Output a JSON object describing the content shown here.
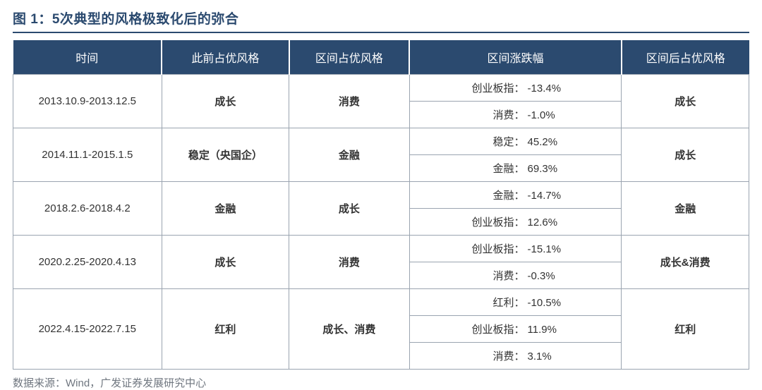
{
  "title": "图 1：5次典型的风格极致化后的弥合",
  "headers": {
    "col1": "时间",
    "col2": "此前占优风格",
    "col3": "区间占优风格",
    "col4": "区间涨跌幅",
    "col5": "区间后占优风格"
  },
  "rows": [
    {
      "time": "2013.10.9-2013.12.5",
      "prior": "成长",
      "during": "消费",
      "after": "成长",
      "perf": [
        {
          "label": "创业板指：",
          "value": "-13.4%"
        },
        {
          "label": "消费：",
          "value": "-1.0%"
        }
      ]
    },
    {
      "time": "2014.11.1-2015.1.5",
      "prior": "稳定（央国企）",
      "during": "金融",
      "after": "成长",
      "perf": [
        {
          "label": "稳定：",
          "value": "45.2%"
        },
        {
          "label": "金融：",
          "value": "69.3%"
        }
      ]
    },
    {
      "time": "2018.2.6-2018.4.2",
      "prior": "金融",
      "during": "成长",
      "after": "金融",
      "perf": [
        {
          "label": "金融：",
          "value": "-14.7%"
        },
        {
          "label": "创业板指：",
          "value": "12.6%"
        }
      ]
    },
    {
      "time": "2020.2.25-2020.4.13",
      "prior": "成长",
      "during": "消费",
      "after": "成长&消费",
      "perf": [
        {
          "label": "创业板指：",
          "value": "-15.1%"
        },
        {
          "label": "消费：",
          "value": "-0.3%"
        }
      ]
    },
    {
      "time": "2022.4.15-2022.7.15",
      "prior": "红利",
      "during": "成长、消费",
      "after": "红利",
      "perf": [
        {
          "label": "红利：",
          "value": "-10.5%"
        },
        {
          "label": "创业板指：",
          "value": "11.9%"
        },
        {
          "label": "消费：",
          "value": "3.1%"
        }
      ]
    }
  ],
  "source": "数据来源：Wind，广发证券发展研究中心",
  "colors": {
    "header_bg": "#2b4a6f",
    "header_text": "#ffffff",
    "border": "#9aa4b0",
    "title": "#2b4a6f",
    "source_text": "#707780"
  }
}
